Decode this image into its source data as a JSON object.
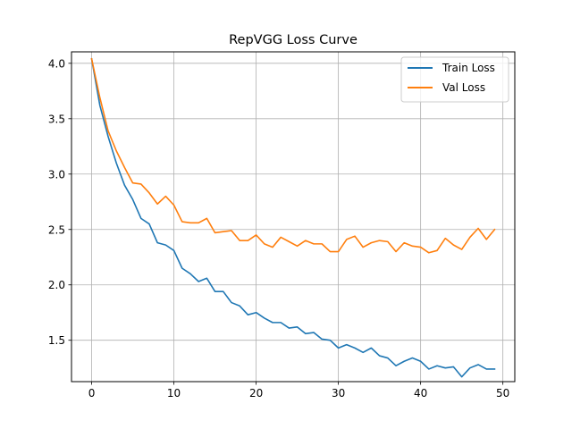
{
  "chart_data": {
    "type": "line",
    "title": "RepVGG Loss Curve",
    "xlabel": "",
    "ylabel": "",
    "xlim": [
      -2.45,
      51.45
    ],
    "ylim": [
      1.1265,
      4.1035
    ],
    "xticks": [
      0,
      10,
      20,
      30,
      40,
      50
    ],
    "yticks": [
      1.5,
      2.0,
      2.5,
      3.0,
      3.5,
      4.0
    ],
    "ytick_labels": [
      "1.5",
      "2.0",
      "2.5",
      "3.0",
      "3.5",
      "4.0"
    ],
    "grid": true,
    "legend_position": "top-right",
    "x": [
      0,
      1,
      2,
      3,
      4,
      5,
      6,
      7,
      8,
      9,
      10,
      11,
      12,
      13,
      14,
      15,
      16,
      17,
      18,
      19,
      20,
      21,
      22,
      23,
      24,
      25,
      26,
      27,
      28,
      29,
      30,
      31,
      32,
      33,
      34,
      35,
      36,
      37,
      38,
      39,
      40,
      41,
      42,
      43,
      44,
      45,
      46,
      47,
      48,
      49
    ],
    "series": [
      {
        "name": "Train Loss",
        "color": "#1f77b4",
        "values": [
          4.04,
          3.62,
          3.34,
          3.1,
          2.9,
          2.77,
          2.6,
          2.55,
          2.38,
          2.36,
          2.31,
          2.15,
          2.1,
          2.03,
          2.06,
          1.94,
          1.94,
          1.84,
          1.81,
          1.73,
          1.75,
          1.7,
          1.66,
          1.66,
          1.61,
          1.62,
          1.56,
          1.57,
          1.51,
          1.5,
          1.43,
          1.46,
          1.43,
          1.39,
          1.43,
          1.36,
          1.34,
          1.27,
          1.31,
          1.34,
          1.31,
          1.24,
          1.27,
          1.25,
          1.26,
          1.17,
          1.25,
          1.28,
          1.24,
          1.24
        ]
      },
      {
        "name": "Val Loss",
        "color": "#ff7f0e",
        "values": [
          4.04,
          3.69,
          3.39,
          3.21,
          3.06,
          2.92,
          2.91,
          2.83,
          2.73,
          2.8,
          2.72,
          2.57,
          2.56,
          2.56,
          2.6,
          2.47,
          2.48,
          2.49,
          2.4,
          2.4,
          2.45,
          2.37,
          2.34,
          2.43,
          2.39,
          2.35,
          2.4,
          2.37,
          2.37,
          2.3,
          2.3,
          2.41,
          2.44,
          2.34,
          2.38,
          2.4,
          2.39,
          2.3,
          2.38,
          2.35,
          2.34,
          2.29,
          2.31,
          2.42,
          2.36,
          2.32,
          2.43,
          2.51,
          2.41,
          2.5
        ]
      }
    ]
  }
}
